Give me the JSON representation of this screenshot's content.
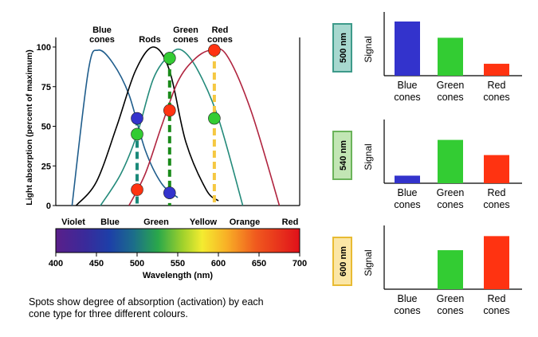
{
  "main_chart": {
    "curve_labels": {
      "blue": [
        "Blue",
        "cones"
      ],
      "rods": [
        "Rods"
      ],
      "green": [
        "Green",
        "cones"
      ],
      "red": [
        "Red",
        "cones"
      ]
    },
    "ylabel": "Light absorption (percent of maximum)",
    "xlabel": "Wavelength (nm)",
    "y_ticks": [
      "0",
      "25",
      "50",
      "75",
      "100"
    ],
    "x_ticks": [
      "400",
      "450",
      "500",
      "550",
      "600",
      "650",
      "700"
    ],
    "color_names": [
      "Violet",
      "Blue",
      "Green",
      "Yellow",
      "Orange",
      "Red"
    ],
    "colors": {
      "blue_curve": "#1f5d8c",
      "rods_curve": "#000000",
      "green_curve": "#238a7a",
      "red_curve": "#b0243f",
      "blue_spot": "#3333cc",
      "green_spot": "#33cc33",
      "red_spot": "#ff3311",
      "line_500": "#1a8a7a",
      "line_540": "#1a8a1a",
      "line_600": "#f5c842"
    }
  },
  "caption": [
    "Spots show degree of absorption (activation) by each",
    "cone type for three different colours."
  ],
  "chart_data": [
    {
      "type": "line",
      "title": "",
      "xlabel": "Wavelength (nm)",
      "ylabel": "Light absorption (percent of maximum)",
      "xlim": [
        400,
        700
      ],
      "ylim": [
        0,
        100
      ],
      "series": [
        {
          "x": [
            420,
            440,
            452,
            470,
            490,
            510,
            530,
            550
          ],
          "y": [
            0,
            85,
            98,
            90,
            70,
            35,
            14,
            5
          ]
        },
        {
          "x": [
            425,
            450,
            475,
            498,
            520,
            540,
            560,
            585,
            600
          ],
          "y": [
            0,
            15,
            50,
            85,
            100,
            85,
            40,
            10,
            3
          ]
        },
        {
          "x": [
            455,
            480,
            500,
            520,
            540,
            555,
            575,
            600,
            630
          ],
          "y": [
            0,
            20,
            45,
            80,
            95,
            98,
            85,
            55,
            0
          ]
        },
        {
          "x": [
            490,
            510,
            530,
            550,
            570,
            590,
            610,
            640,
            675
          ],
          "y": [
            0,
            20,
            50,
            78,
            92,
            98,
            95,
            60,
            0
          ]
        }
      ],
      "markers": [
        {
          "wavelength": 500,
          "blue": 55,
          "green": 45,
          "red": 10
        },
        {
          "wavelength": 540,
          "blue": 8,
          "green": 93,
          "red": 60
        },
        {
          "wavelength": 595,
          "green": 55,
          "red": 98
        }
      ]
    },
    {
      "type": "bar",
      "label": "500 nm",
      "ylabel": "Signal",
      "categories": [
        [
          "Blue",
          "cones"
        ],
        [
          "Green",
          "cones"
        ],
        [
          "Red",
          "cones"
        ]
      ],
      "values": [
        100,
        70,
        22
      ],
      "colors": [
        "#3333cc",
        "#33cc33",
        "#ff3311"
      ],
      "label_bg": "#a7d8cf",
      "label_border": "#3d9a8a"
    },
    {
      "type": "bar",
      "label": "540 nm",
      "ylabel": "Signal",
      "categories": [
        [
          "Blue",
          "cones"
        ],
        [
          "Green",
          "cones"
        ],
        [
          "Red",
          "cones"
        ]
      ],
      "values": [
        14,
        80,
        52
      ],
      "colors": [
        "#3333cc",
        "#33cc33",
        "#ff3311"
      ],
      "label_bg": "#c2e6b4",
      "label_border": "#6bb35a"
    },
    {
      "type": "bar",
      "label": "600 nm",
      "ylabel": "Signal",
      "categories": [
        [
          "Blue",
          "cones"
        ],
        [
          "Green",
          "cones"
        ],
        [
          "Red",
          "cones"
        ]
      ],
      "values": [
        0,
        72,
        98
      ],
      "colors": [
        "#3333cc",
        "#33cc33",
        "#ff3311"
      ],
      "label_bg": "#fbe6a6",
      "label_border": "#e8bb33"
    }
  ]
}
